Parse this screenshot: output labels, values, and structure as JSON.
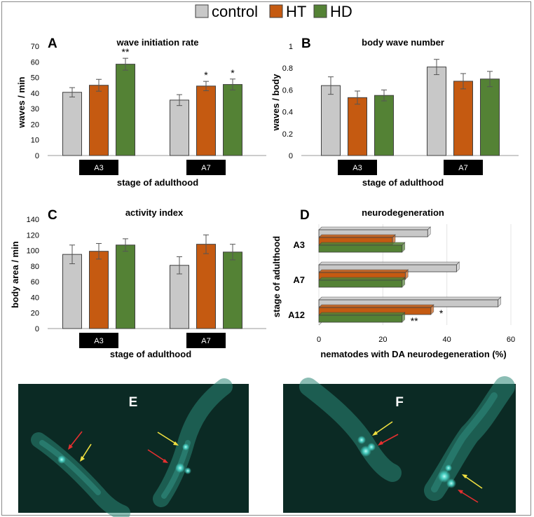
{
  "legend": [
    {
      "label": "control",
      "color": "#c8c8c8"
    },
    {
      "label": "HT",
      "color": "#c55a11"
    },
    {
      "label": "HD",
      "color": "#548235"
    }
  ],
  "colors": {
    "control": "#c8c8c8",
    "HT": "#c55a11",
    "HD": "#548235",
    "axis": "#999999",
    "edge": "#404040",
    "dark": "#000000"
  },
  "chart_data": [
    {
      "panel": "A",
      "type": "bar",
      "title": "wave initiation rate",
      "xlabel": "stage of adulthood",
      "ylabel": "waves / min",
      "ylim": [
        0,
        70
      ],
      "yticks": [
        0,
        10,
        20,
        30,
        40,
        50,
        60,
        70
      ],
      "categories": [
        "A3",
        "A7"
      ],
      "series": [
        {
          "name": "control",
          "values": [
            40.5,
            35.5
          ],
          "errors": [
            3,
            3.5
          ]
        },
        {
          "name": "HT",
          "values": [
            45,
            44.5
          ],
          "errors": [
            3.8,
            3
          ]
        },
        {
          "name": "HD",
          "values": [
            58.5,
            45.5
          ],
          "errors": [
            3.8,
            3.5
          ]
        }
      ],
      "annotations": [
        {
          "category": "A3",
          "series": "HD",
          "text": "**"
        },
        {
          "category": "A7",
          "series": "HT",
          "text": "*"
        },
        {
          "category": "A7",
          "series": "HD",
          "text": "*"
        }
      ]
    },
    {
      "panel": "B",
      "type": "bar",
      "title": "body wave number",
      "xlabel": "stage of adulthood",
      "ylabel": "waves / body",
      "ylim": [
        0,
        1
      ],
      "yticks": [
        "0",
        "0.2",
        "0.4",
        "0.6",
        "0.8",
        "1"
      ],
      "categories": [
        "A3",
        "A7"
      ],
      "series": [
        {
          "name": "control",
          "values": [
            0.64,
            0.81
          ],
          "errors": [
            0.08,
            0.07
          ]
        },
        {
          "name": "HT",
          "values": [
            0.53,
            0.68
          ],
          "errors": [
            0.06,
            0.07
          ]
        },
        {
          "name": "HD",
          "values": [
            0.55,
            0.7
          ],
          "errors": [
            0.05,
            0.07
          ]
        }
      ],
      "annotations": []
    },
    {
      "panel": "C",
      "type": "bar",
      "title": "activity index",
      "xlabel": "stage of adulthood",
      "ylabel": "body area / min",
      "ylim": [
        0,
        140
      ],
      "yticks": [
        0,
        20,
        40,
        60,
        80,
        100,
        120,
        140
      ],
      "categories": [
        "A3",
        "A7"
      ],
      "series": [
        {
          "name": "control",
          "values": [
            95,
            81
          ],
          "errors": [
            12,
            11
          ]
        },
        {
          "name": "HT",
          "values": [
            99,
            108
          ],
          "errors": [
            10,
            12
          ]
        },
        {
          "name": "HD",
          "values": [
            107,
            98
          ],
          "errors": [
            8,
            10
          ]
        }
      ],
      "annotations": []
    },
    {
      "panel": "D",
      "type": "bar",
      "orientation": "horizontal",
      "title": "neurodegeneration",
      "xlabel": "nematodes with DA neurodegeneration (%)",
      "ylabel": "stage of adulthood",
      "xlim": [
        0,
        60
      ],
      "xticks": [
        0,
        20,
        40,
        60
      ],
      "categories": [
        "A3",
        "A7",
        "A12"
      ],
      "series": [
        {
          "name": "control",
          "values": [
            34,
            43,
            56
          ]
        },
        {
          "name": "HT",
          "values": [
            23,
            27,
            35
          ]
        },
        {
          "name": "HD",
          "values": [
            26,
            26,
            26
          ]
        }
      ],
      "annotations": [
        {
          "category": "A12",
          "series": "HT",
          "text": "*"
        },
        {
          "category": "A12",
          "series": "HD",
          "text": "**"
        }
      ]
    }
  ],
  "micrographs": {
    "left_label": "E",
    "right_label": "F",
    "background": "#0b2a24",
    "glow": "#4fe3d6"
  }
}
